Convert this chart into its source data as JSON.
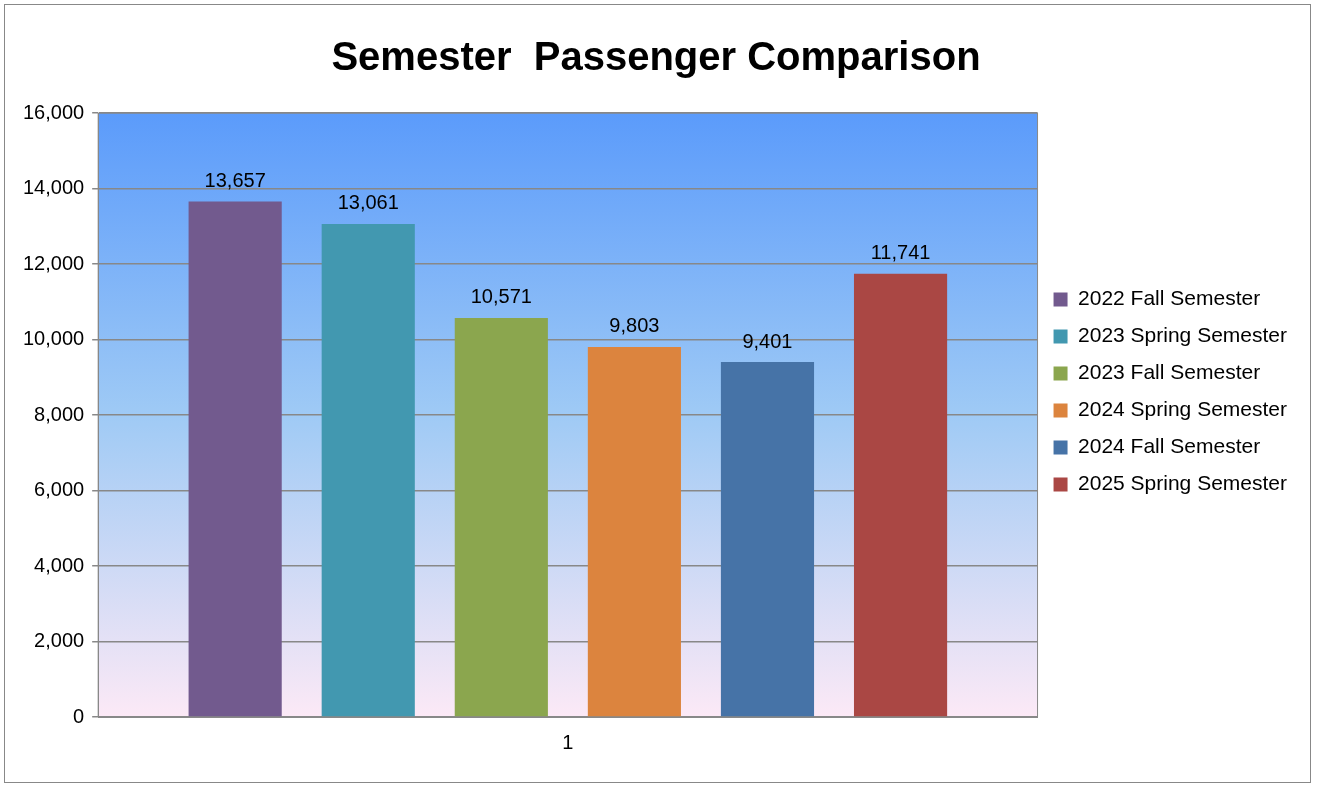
{
  "chart_data": {
    "type": "bar",
    "title": "Semester  Passenger Comparison",
    "categories": [
      "1"
    ],
    "series": [
      {
        "name": "2022 Fall Semester",
        "color": "#725a8e",
        "values": [
          13657
        ],
        "value_labels": [
          "13,657"
        ]
      },
      {
        "name": "2023 Spring Semester",
        "color": "#4298b0",
        "values": [
          13061
        ],
        "value_labels": [
          "13,061"
        ]
      },
      {
        "name": "2023 Fall Semester",
        "color": "#8ba64e",
        "values": [
          10571
        ],
        "value_labels": [
          "10,571"
        ]
      },
      {
        "name": "2024 Spring Semester",
        "color": "#dc843e",
        "values": [
          9803
        ],
        "value_labels": [
          "9,803"
        ]
      },
      {
        "name": "2024 Fall Semester",
        "color": "#4673a7",
        "values": [
          9401
        ],
        "value_labels": [
          "9,401"
        ]
      },
      {
        "name": "2025 Spring Semester",
        "color": "#aa4744",
        "values": [
          11741
        ],
        "value_labels": [
          "11,741"
        ]
      }
    ],
    "ylim": [
      0,
      16000
    ],
    "yticks": [
      {
        "value": 0,
        "label": "0"
      },
      {
        "value": 2000,
        "label": "2,000"
      },
      {
        "value": 4000,
        "label": "4,000"
      },
      {
        "value": 6000,
        "label": "6,000"
      },
      {
        "value": 8000,
        "label": "8,000"
      },
      {
        "value": 10000,
        "label": "10,000"
      },
      {
        "value": 12000,
        "label": "12,000"
      },
      {
        "value": 14000,
        "label": "14,000"
      },
      {
        "value": 16000,
        "label": "16,000"
      }
    ],
    "grid": "y",
    "legend": "right"
  }
}
